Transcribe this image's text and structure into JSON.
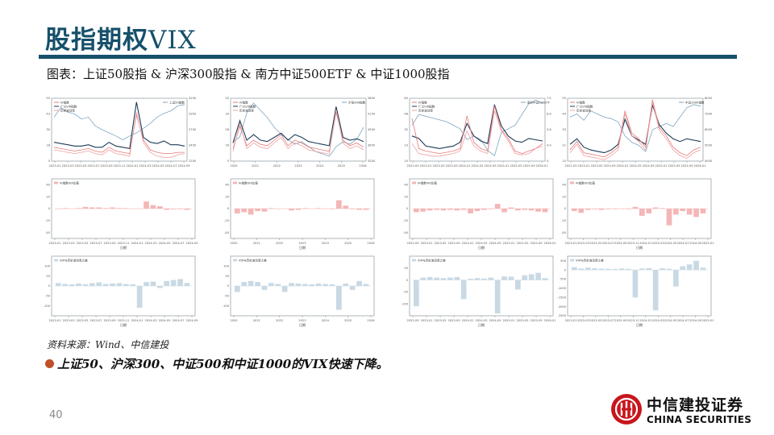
{
  "header": {
    "title_cn": "股指期权",
    "title_latin": "VIX",
    "subtitle": "图表：上证50股指 & 沪深300股指 & 南方中证500ETF & 中证1000股指"
  },
  "footer": {
    "source": "资料来源：Wind、中信建投",
    "bullet": "上证50、沪深300、中证500和中证1000的VIX快速下降。",
    "page_number": "40",
    "logo_cn": "中信建投证券",
    "logo_en": "CHINA SECURITIES"
  },
  "colors": {
    "brand": "#16506b",
    "iv": "#e8797a",
    "vix": "#1d3b57",
    "hv": "#f0a0a0",
    "index": "#7fa6c2",
    "diff_pos": "#f4b6b6",
    "hvdiff": "#c9d9e4",
    "bullet": "#c0502a",
    "logo_red": "#c8161d"
  },
  "chart_data": [
    {
      "type": "line",
      "panel": "sse50-vix",
      "row": 0,
      "col": 0,
      "legend": [
        "IV指数",
        "广义VIX指数",
        "历史波动率",
        "上证50指数"
      ],
      "xticks": [
        "2023-01",
        "2023-03",
        "2023-05",
        "2023-07",
        "2023-09",
        "2023-11",
        "2024-01",
        "2024-03",
        "2024-05",
        "2024-07",
        "2024-09"
      ],
      "ylim_left": [
        5,
        55
      ],
      "ylim_right": [
        2200,
        3200
      ],
      "series": [
        {
          "name": "上证50指数",
          "axis": "right",
          "values": [
            2900,
            3050,
            2980,
            2950,
            2870,
            2900,
            2760,
            2700,
            2650,
            2600,
            2540,
            2600,
            2650,
            2720,
            2800,
            2900,
            2960,
            3000,
            3080,
            3100
          ]
        },
        {
          "name": "广义VIX指数",
          "axis": "left",
          "values": [
            20,
            19,
            18,
            17,
            17,
            18,
            16,
            16,
            20,
            17,
            16,
            15,
            52,
            24,
            20,
            19,
            21,
            18,
            18,
            17
          ]
        },
        {
          "name": "IV指数",
          "axis": "left",
          "values": [
            16,
            15,
            14,
            13,
            14,
            15,
            13,
            12,
            16,
            13,
            12,
            11,
            42,
            22,
            14,
            12,
            11,
            11,
            12,
            12
          ]
        },
        {
          "name": "历史波动率",
          "axis": "left",
          "values": [
            14,
            13,
            12,
            11,
            12,
            13,
            11,
            10,
            14,
            11,
            10,
            9,
            44,
            20,
            12,
            9,
            8,
            8,
            10,
            11
          ]
        }
      ]
    },
    {
      "type": "line",
      "panel": "csi300-vix",
      "row": 0,
      "col": 1,
      "legend": [
        "IV指数",
        "广义VIX指数",
        "历史波动率",
        "沪深300指数"
      ],
      "xticks": [
        "2020",
        "2021",
        "2022",
        "2023",
        "2024",
        "2025",
        "2026"
      ],
      "ylim_left": [
        5,
        50
      ],
      "ylim_right": [
        3200,
        5800
      ],
      "series": [
        {
          "name": "沪深300指数",
          "axis": "right",
          "values": [
            4000,
            4200,
            5200,
            5600,
            5300,
            5000,
            4600,
            4300,
            4100,
            3900,
            4000,
            3800,
            3600,
            3500,
            3400,
            3800,
            4000,
            3900,
            4100,
            4600
          ]
        },
        {
          "name": "广义VIX指数",
          "axis": "left",
          "values": [
            18,
            34,
            20,
            24,
            20,
            19,
            22,
            25,
            20,
            24,
            22,
            19,
            18,
            17,
            16,
            44,
            22,
            20,
            21,
            19
          ]
        },
        {
          "name": "IV指数",
          "axis": "left",
          "values": [
            14,
            30,
            16,
            20,
            17,
            16,
            20,
            24,
            16,
            20,
            18,
            15,
            14,
            13,
            12,
            40,
            20,
            16,
            18,
            15
          ]
        },
        {
          "name": "历史波动率",
          "axis": "left",
          "values": [
            12,
            32,
            14,
            18,
            15,
            14,
            18,
            22,
            14,
            18,
            16,
            13,
            12,
            11,
            10,
            42,
            18,
            14,
            16,
            13
          ]
        }
      ]
    },
    {
      "type": "line",
      "panel": "csi500etf-vix",
      "row": 0,
      "col": 2,
      "legend": [
        "IV指数",
        "广义VIX指数",
        "历史波动率",
        "南方中证500ETF"
      ],
      "xticks": [
        "2022-09",
        "2023-01",
        "2023-05",
        "2023-09",
        "2024-01",
        "2024-05",
        "2024-09",
        "2025-01",
        "2025-05",
        "2025-09",
        "2026-01"
      ],
      "ylim_left": [
        10,
        60
      ],
      "ylim_right": [
        4.0,
        7.5
      ],
      "series": [
        {
          "name": "南方中证500ETF",
          "axis": "right",
          "values": [
            6.0,
            6.6,
            6.5,
            6.4,
            6.3,
            6.2,
            6.0,
            5.8,
            5.2,
            5.4,
            5.2,
            4.6,
            4.3,
            5.6,
            5.8,
            6.0,
            6.6,
            7.2,
            7.4,
            7.2
          ]
        },
        {
          "name": "广义VIX指数",
          "axis": "left",
          "values": [
            30,
            28,
            22,
            21,
            20,
            21,
            22,
            25,
            40,
            30,
            26,
            24,
            55,
            38,
            30,
            26,
            25,
            28,
            27,
            26
          ]
        },
        {
          "name": "IV指数",
          "axis": "left",
          "values": [
            44,
            20,
            18,
            17,
            16,
            17,
            18,
            20,
            46,
            25,
            20,
            18,
            54,
            35,
            28,
            18,
            16,
            18,
            20,
            24
          ]
        },
        {
          "name": "历史波动率",
          "axis": "left",
          "values": [
            24,
            16,
            15,
            14,
            14,
            15,
            16,
            18,
            34,
            22,
            18,
            16,
            50,
            34,
            26,
            16,
            15,
            16,
            20,
            22
          ]
        }
      ]
    },
    {
      "type": "line",
      "panel": "csi1000-vix",
      "row": 0,
      "col": 3,
      "legend": [
        "IV指数",
        "广义VIX指数",
        "历史波动率",
        "中证1000指数"
      ],
      "xticks": [
        "2022-09",
        "2023-01",
        "2023-05",
        "2023-09",
        "2024-01",
        "2024-05",
        "2024-09",
        "2025-01",
        "2025-05",
        "2025-09",
        "2026-01"
      ],
      "ylim_left": [
        10,
        55
      ],
      "ylim_right": [
        4000,
        8000
      ],
      "series": [
        {
          "name": "中证1000指数",
          "axis": "right",
          "values": [
            6800,
            7000,
            6600,
            7200,
            7000,
            6800,
            6700,
            6500,
            5600,
            5200,
            5000,
            4600,
            6000,
            6200,
            6400,
            6200,
            6800,
            7400,
            7600,
            7500
          ]
        },
        {
          "name": "广义VIX指数",
          "axis": "left",
          "values": [
            22,
            26,
            20,
            18,
            17,
            16,
            18,
            22,
            40,
            28,
            25,
            22,
            50,
            36,
            30,
            26,
            24,
            26,
            25,
            24
          ]
        },
        {
          "name": "IV指数",
          "axis": "left",
          "values": [
            18,
            24,
            16,
            15,
            14,
            13,
            16,
            20,
            46,
            30,
            26,
            20,
            54,
            34,
            28,
            20,
            16,
            14,
            18,
            20
          ]
        },
        {
          "name": "历史波动率",
          "axis": "left",
          "values": [
            16,
            22,
            14,
            13,
            12,
            11,
            14,
            18,
            44,
            28,
            24,
            18,
            52,
            32,
            26,
            18,
            14,
            12,
            16,
            18
          ]
        }
      ]
    },
    {
      "type": "bar",
      "panel": "sse50-iv-diff",
      "row": 1,
      "col": 0,
      "legend": [
        "IV指数VIX比值"
      ],
      "xlabel": "日期",
      "xticks": [
        "2023-01",
        "2023-03",
        "2023-05",
        "2023-07",
        "2023-09",
        "2023-11",
        "2024-01",
        "2024-03",
        "2024-05",
        "2024-07",
        "2024-09"
      ],
      "ylim": [
        -50,
        50
      ],
      "yticks": [
        40,
        20,
        0,
        -20,
        -40
      ],
      "values": [
        0,
        1,
        0,
        1,
        3,
        2,
        2,
        1,
        2,
        1,
        1,
        0,
        0,
        12,
        6,
        4,
        -2,
        -1,
        -1,
        -2
      ]
    },
    {
      "type": "bar",
      "panel": "csi300-iv-diff",
      "row": 1,
      "col": 1,
      "legend": [
        "IV指数VIX比值"
      ],
      "xlabel": "日期",
      "xticks": [
        "2020",
        "2021",
        "2022",
        "2023",
        "2024",
        "2025",
        "2026"
      ],
      "ylim": [
        -50,
        50
      ],
      "yticks": [
        40,
        20,
        0,
        -20,
        -40
      ],
      "values": [
        -8,
        -6,
        -10,
        -4,
        -5,
        1,
        0,
        0,
        -3,
        -2,
        1,
        0,
        1,
        0,
        -1,
        14,
        5,
        -1,
        -2,
        -2
      ]
    },
    {
      "type": "bar",
      "panel": "csi500-iv-diff",
      "row": 1,
      "col": 2,
      "legend": [
        "IV指数VIX比值"
      ],
      "xlabel": "日期",
      "xticks": [
        "2022-09",
        "2023-01",
        "2023-05",
        "2023-09",
        "2024-01",
        "2024-05",
        "2024-09",
        "2025-01",
        "2025-05",
        "2025-09",
        "2026-01"
      ],
      "ylim": [
        -50,
        50
      ],
      "yticks": [
        40,
        20,
        0,
        -20,
        -40
      ],
      "values": [
        -6,
        -5,
        -3,
        -2,
        -3,
        -2,
        -3,
        -2,
        -8,
        -4,
        -2,
        -1,
        8,
        -6,
        2,
        -3,
        -2,
        -3,
        -5,
        -6
      ]
    },
    {
      "type": "bar",
      "panel": "csi1000-iv-diff",
      "row": 1,
      "col": 3,
      "legend": [
        "IV指数VIX比值"
      ],
      "xlabel": "日期",
      "xticks": [
        "2023-01",
        "2023-03",
        "2023-05",
        "2023-07",
        "2023-09",
        "2023-11",
        "2024-01",
        "2024-03",
        "2024-05",
        "2024-07",
        "2024-09",
        "2025-01"
      ],
      "ylim": [
        -50,
        50
      ],
      "yticks": [
        40,
        20,
        0,
        -20,
        -40
      ],
      "values": [
        -4,
        -7,
        -2,
        -1,
        -2,
        -1,
        -1,
        0,
        -1,
        3,
        -12,
        -8,
        2,
        1,
        -28,
        -10,
        -4,
        -10,
        -14,
        -8
      ]
    },
    {
      "type": "bar",
      "panel": "sse50-hv-diff",
      "row": 2,
      "col": 0,
      "legend": [
        "VIX与历史波动率之差"
      ],
      "xlabel": "日期",
      "xticks": [
        "2023-01",
        "2023-03",
        "2023-05",
        "2023-07",
        "2023-09",
        "2023-11",
        "2024-01",
        "2024-03",
        "2024-05",
        "2024-07",
        "2024-09"
      ],
      "ylim": [
        -150,
        150
      ],
      "yticks": [
        100,
        50,
        0,
        -50,
        -100
      ],
      "values": [
        15,
        10,
        8,
        12,
        9,
        14,
        18,
        10,
        12,
        14,
        10,
        8,
        -110,
        20,
        22,
        -10,
        25,
        30,
        35,
        15
      ]
    },
    {
      "type": "bar",
      "panel": "csi300-hv-diff",
      "row": 2,
      "col": 1,
      "legend": [
        "VIX与历史波动率之差"
      ],
      "xlabel": "日期",
      "xticks": [
        "2020",
        "2021",
        "2022",
        "2023",
        "2024",
        "2025",
        "2026"
      ],
      "ylim": [
        -150,
        150
      ],
      "yticks": [
        100,
        50,
        0,
        -50,
        -100
      ],
      "values": [
        -30,
        20,
        25,
        20,
        -20,
        15,
        10,
        -30,
        15,
        12,
        10,
        8,
        12,
        10,
        8,
        -120,
        12,
        -20,
        25,
        10
      ]
    },
    {
      "type": "bar",
      "panel": "csi500-hv-diff",
      "row": 2,
      "col": 2,
      "legend": [
        "VIX与历史波动率之差"
      ],
      "xlabel": "日期",
      "xticks": [
        "2022-09",
        "2023-01",
        "2023-05",
        "2023-09",
        "2024-01",
        "2024-05",
        "2024-09",
        "2025-01",
        "2025-05",
        "2025-09",
        "2026-01"
      ],
      "ylim": [
        -150,
        100
      ],
      "yticks": [
        50,
        0,
        -50,
        -100
      ],
      "values": [
        -110,
        10,
        12,
        10,
        8,
        10,
        12,
        -80,
        5,
        8,
        6,
        10,
        -140,
        15,
        14,
        -40,
        20,
        24,
        30,
        8
      ]
    },
    {
      "type": "bar",
      "panel": "csi1000-hv-diff",
      "row": 2,
      "col": 3,
      "legend": [
        "VIX与历史波动率之差"
      ],
      "xlabel": "日期",
      "xticks": [
        "2023-01",
        "2023-03",
        "2023-05",
        "2023-07",
        "2023-09",
        "2023-11",
        "2024-01",
        "2024-03",
        "2024-05",
        "2024-07",
        "2024-09",
        "2025-01"
      ],
      "ylim": [
        -2500,
        750
      ],
      "yticks": [
        500,
        0,
        -500,
        -1000,
        -1500,
        -2000,
        -2500
      ],
      "values": [
        150,
        80,
        120,
        90,
        70,
        60,
        50,
        80,
        60,
        -1500,
        80,
        100,
        -2200,
        90,
        60,
        -900,
        200,
        300,
        500,
        120
      ]
    }
  ]
}
